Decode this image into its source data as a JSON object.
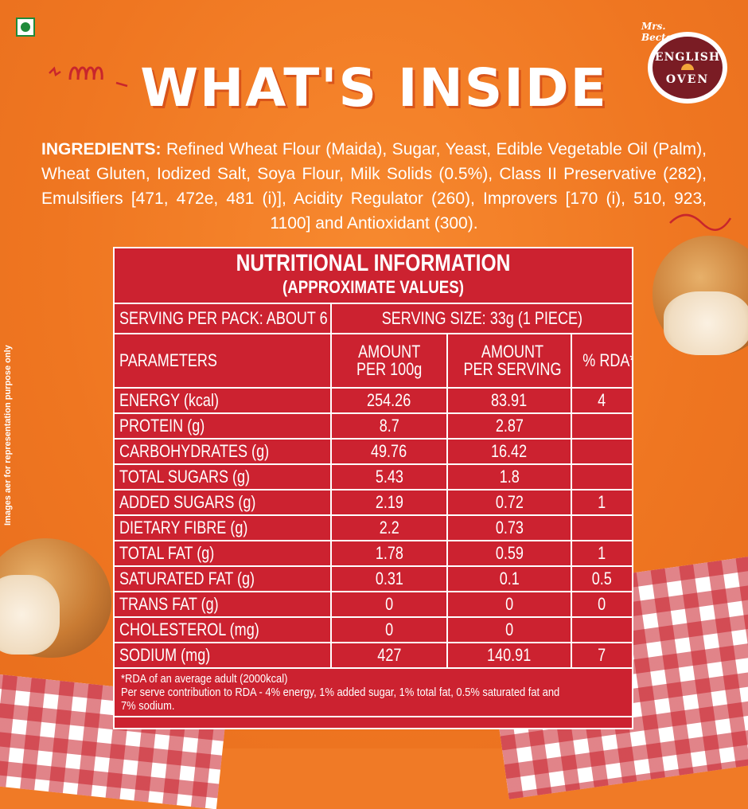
{
  "brand": {
    "top_script": "Mrs. Bector's",
    "line1": "ENGLISH",
    "line2": "OVEN"
  },
  "heading": "WHAT'S INSIDE",
  "ingredients": {
    "lead": "INGREDIENTS:",
    "text": "Refined Wheat Flour (Maida), Sugar, Yeast, Edible Vegetable Oil (Palm), Wheat Gluten, Iodized Salt, Soya Flour, Milk Solids (0.5%), Class II Preservative (282), Emulsifiers [471, 472e, 481 (i)], Acidity Regulator (260), Improvers [170 (i), 510, 923, 1100] and Antioxidant (300)."
  },
  "side_note": "Images aer for representation purpose only",
  "nutrition": {
    "title": "NUTRITIONAL INFORMATION",
    "subtitle": "(APPROXIMATE VALUES)",
    "serving_per_pack": "SERVING PER PACK: ABOUT 6",
    "serving_size": "SERVING SIZE: 33g (1 PIECE)",
    "headers": {
      "param": "PARAMETERS",
      "per100_l1": "AMOUNT",
      "per100_l2": "PER 100g",
      "perserv_l1": "AMOUNT",
      "perserv_l2": "PER SERVING",
      "rda": "% RDA*"
    },
    "rows": [
      {
        "name": "ENERGY (kcal)",
        "per100": "254.26",
        "serving": "83.91",
        "rda": "4"
      },
      {
        "name": "PROTEIN (g)",
        "per100": "8.7",
        "serving": "2.87",
        "rda": ""
      },
      {
        "name": "CARBOHYDRATES (g)",
        "per100": "49.76",
        "serving": "16.42",
        "rda": ""
      },
      {
        "name": "TOTAL SUGARS (g)",
        "per100": "5.43",
        "serving": "1.8",
        "rda": ""
      },
      {
        "name": "ADDED SUGARS (g)",
        "per100": "2.19",
        "serving": "0.72",
        "rda": "1"
      },
      {
        "name": "DIETARY FIBRE (g)",
        "per100": "2.2",
        "serving": "0.73",
        "rda": ""
      },
      {
        "name": "TOTAL FAT (g)",
        "per100": "1.78",
        "serving": "0.59",
        "rda": "1"
      },
      {
        "name": "SATURATED FAT (g)",
        "per100": "0.31",
        "serving": "0.1",
        "rda": "0.5"
      },
      {
        "name": "TRANS FAT (g)",
        "per100": "0",
        "serving": "0",
        "rda": "0"
      },
      {
        "name": "CHOLESTEROL (mg)",
        "per100": "0",
        "serving": "0",
        "rda": ""
      },
      {
        "name": "SODIUM (mg)",
        "per100": "427",
        "serving": "140.91",
        "rda": "7"
      }
    ],
    "footnote1": "*RDA of an average adult (2000kcal)",
    "footnote2": "Per serve contribution to RDA - 4% energy, 1% added sugar, 1% total fat, 0.5% saturated fat and",
    "footnote3": "7% sodium."
  },
  "colors": {
    "background": "#f07a26",
    "table": "#cc2230",
    "logo": "#7a1c24",
    "veg": "#1f8a3a"
  },
  "icons": {
    "veg_mark": "veg-symbol",
    "logo": "english-oven-logo"
  }
}
